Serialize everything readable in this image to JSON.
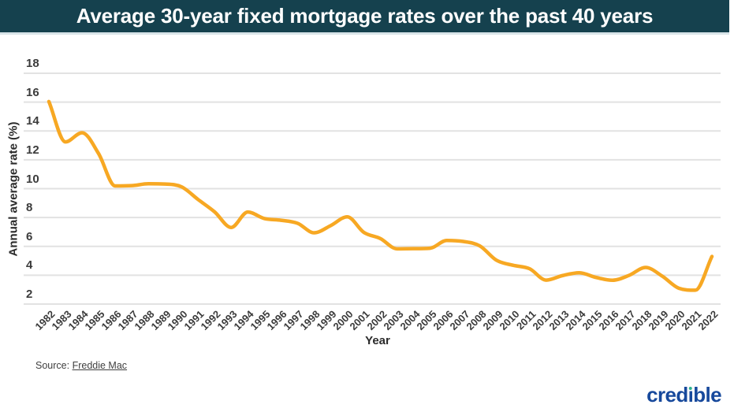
{
  "header": {
    "title": "Average 30-year fixed mortgage rates over the past 40 years"
  },
  "chart_data": {
    "type": "line",
    "title": "Average 30-year fixed mortgage rates over the past 40 years",
    "xlabel": "Year",
    "ylabel": "Annual average rate (%)",
    "x": [
      1982,
      1983,
      1984,
      1985,
      1986,
      1987,
      1988,
      1989,
      1990,
      1991,
      1992,
      1993,
      1994,
      1995,
      1996,
      1997,
      1998,
      1999,
      2000,
      2001,
      2002,
      2003,
      2004,
      2005,
      2006,
      2007,
      2008,
      2009,
      2010,
      2011,
      2012,
      2013,
      2014,
      2015,
      2016,
      2017,
      2018,
      2019,
      2020,
      2021,
      2022
    ],
    "series": [
      {
        "name": "Average 30-year fixed mortgage rate",
        "values": [
          16.04,
          13.24,
          13.88,
          12.43,
          10.19,
          10.21,
          10.34,
          10.32,
          10.13,
          9.25,
          8.39,
          7.31,
          8.38,
          7.93,
          7.81,
          7.6,
          6.94,
          7.44,
          8.05,
          6.97,
          6.54,
          5.83,
          5.84,
          5.87,
          6.41,
          6.34,
          6.03,
          5.04,
          4.69,
          4.45,
          3.66,
          3.98,
          4.17,
          3.85,
          3.65,
          3.99,
          4.54,
          3.94,
          3.1,
          2.96,
          5.3
        ]
      }
    ],
    "ylim": [
      2,
      18
    ],
    "yticks": [
      2,
      4,
      6,
      8,
      10,
      12,
      14,
      16,
      18
    ],
    "grid": "horizontal",
    "legend": "none",
    "smooth": true
  },
  "source": {
    "prefix": "Source: ",
    "link_text": "Freddie Mac"
  },
  "branding": {
    "logo_text": "credible",
    "logo_part1": "cred",
    "logo_i": "ı",
    "logo_part2": "ble"
  },
  "theme": {
    "header_bg": "#15414e",
    "line_color": "#f7a823",
    "grid_color": "#e2e2e2",
    "tick_color": "#3b3b3b",
    "logo_blue": "#17499c",
    "logo_green": "#2eb290"
  }
}
